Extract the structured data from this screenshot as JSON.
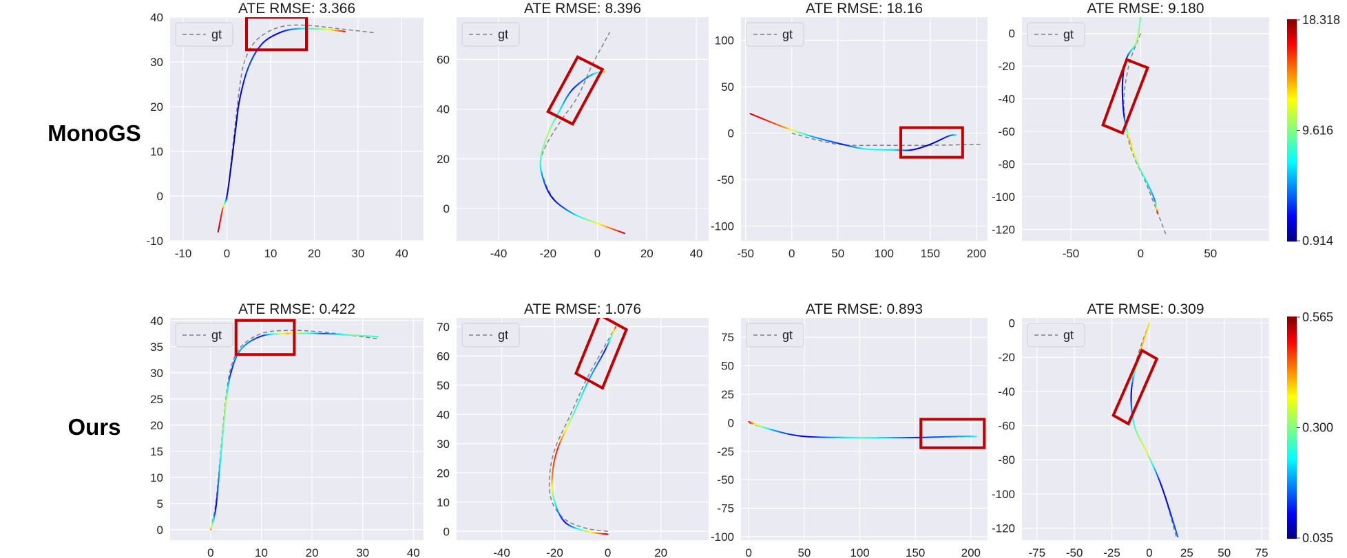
{
  "figure": {
    "row_labels": [
      "MonoGS",
      "Ours"
    ],
    "legend_label": "gt",
    "gt_color": "#7f7f7f",
    "highlight_color": "#c00000",
    "panel_bg": "#eaeaf2",
    "grid_color": "#ffffff",
    "colormap": "jet"
  },
  "chart_data": [
    {
      "type": "line",
      "row": 0,
      "col": 0,
      "title": "ATE RMSE: 3.366",
      "xlim": [
        -13,
        45
      ],
      "ylim": [
        -10,
        40
      ],
      "xticks": [
        -10,
        0,
        10,
        20,
        30,
        40
      ],
      "yticks": [
        -10,
        0,
        10,
        20,
        30,
        40
      ],
      "gt": [
        [
          0,
          -1
        ],
        [
          1,
          8
        ],
        [
          2,
          17
        ],
        [
          3,
          25
        ],
        [
          4,
          30
        ],
        [
          6,
          34
        ],
        [
          9,
          36.5
        ],
        [
          13,
          38
        ],
        [
          18,
          38.2
        ],
        [
          25,
          37.5
        ],
        [
          34,
          36.5
        ]
      ],
      "est": [
        [
          -2,
          -8
        ],
        [
          -1,
          -3
        ],
        [
          0,
          0
        ],
        [
          1,
          7
        ],
        [
          2,
          15
        ],
        [
          3,
          22
        ],
        [
          5,
          29
        ],
        [
          8,
          34
        ],
        [
          12,
          36.5
        ],
        [
          16,
          37.4
        ],
        [
          22,
          37.3
        ],
        [
          27,
          36.8
        ]
      ],
      "err": [
        0.95,
        0.8,
        0.1,
        0.05,
        0.05,
        0.1,
        0.2,
        0.15,
        0.1,
        0.3,
        0.55,
        0.9
      ],
      "highlight": [
        [
          4.5,
          32.7
        ],
        [
          18.2,
          32.7
        ],
        [
          18.2,
          40
        ],
        [
          4.5,
          40
        ]
      ],
      "colorbar": null
    },
    {
      "type": "line",
      "row": 0,
      "col": 1,
      "title": "ATE RMSE: 8.396",
      "xlim": [
        -57,
        45
      ],
      "ylim": [
        -13,
        77
      ],
      "xticks": [
        -40,
        -20,
        0,
        20,
        40
      ],
      "yticks": [
        0,
        20,
        40,
        60
      ],
      "gt": [
        [
          -13,
          0
        ],
        [
          -17,
          3
        ],
        [
          -21,
          10
        ],
        [
          -23,
          18
        ],
        [
          -21,
          25
        ],
        [
          -15,
          35
        ],
        [
          -8,
          45
        ],
        [
          -2,
          58
        ],
        [
          5,
          71
        ]
      ],
      "est": [
        [
          11,
          -10
        ],
        [
          0,
          -6
        ],
        [
          -10,
          -2
        ],
        [
          -18,
          4
        ],
        [
          -22,
          12
        ],
        [
          -23,
          20
        ],
        [
          -20,
          30
        ],
        [
          -15,
          40
        ],
        [
          -10,
          48
        ],
        [
          -2,
          54
        ],
        [
          3,
          55
        ]
      ],
      "err": [
        0.95,
        0.6,
        0.3,
        0.08,
        0.25,
        0.45,
        0.55,
        0.35,
        0.15,
        0.3,
        0.75
      ],
      "highlight": [
        [
          -20,
          39
        ],
        [
          -10,
          34
        ],
        [
          2,
          56
        ],
        [
          -8,
          61
        ]
      ],
      "colorbar": null
    },
    {
      "type": "line",
      "row": 0,
      "col": 2,
      "title": "ATE RMSE: 18.16",
      "xlim": [
        -55,
        212
      ],
      "ylim": [
        -116,
        125
      ],
      "xticks": [
        -50,
        0,
        50,
        100,
        150,
        200
      ],
      "yticks": [
        -100,
        -50,
        0,
        50,
        100
      ],
      "gt": [
        [
          0,
          0
        ],
        [
          50,
          -12
        ],
        [
          100,
          -13
        ],
        [
          150,
          -13
        ],
        [
          205,
          -12
        ]
      ],
      "est": [
        [
          -45,
          21
        ],
        [
          -10,
          7
        ],
        [
          20,
          -3
        ],
        [
          55,
          -12
        ],
        [
          80,
          -17
        ],
        [
          110,
          -18
        ],
        [
          130,
          -18
        ],
        [
          150,
          -12
        ],
        [
          170,
          -3
        ],
        [
          178,
          -2
        ]
      ],
      "err": [
        0.95,
        0.75,
        0.3,
        0.15,
        0.4,
        0.35,
        0.1,
        0.05,
        0.2,
        0.4
      ],
      "highlight": [
        [
          118,
          -26
        ],
        [
          185,
          -26
        ],
        [
          185,
          6
        ],
        [
          118,
          6
        ]
      ],
      "colorbar": {
        "max": "18.318",
        "mid": "9.616",
        "min": "0.914"
      }
    },
    {
      "type": "line",
      "row": 0,
      "col": 3,
      "title": "ATE RMSE: 9.180",
      "xlim": [
        -85,
        92
      ],
      "ylim": [
        -127,
        10
      ],
      "xticks": [
        -50,
        0,
        50
      ],
      "yticks": [
        -120,
        -100,
        -80,
        -60,
        -40,
        -20,
        0
      ],
      "gt": [
        [
          0,
          0
        ],
        [
          -8,
          -18
        ],
        [
          -12,
          -40
        ],
        [
          -10,
          -60
        ],
        [
          -5,
          -75
        ],
        [
          3,
          -90
        ],
        [
          10,
          -105
        ],
        [
          18,
          -123
        ]
      ],
      "est": [
        [
          0,
          10
        ],
        [
          -3,
          -5
        ],
        [
          -10,
          -15
        ],
        [
          -13,
          -30
        ],
        [
          -12,
          -50
        ],
        [
          -8,
          -65
        ],
        [
          -2,
          -80
        ],
        [
          5,
          -92
        ],
        [
          10,
          -102
        ],
        [
          12,
          -110
        ]
      ],
      "err": [
        0.45,
        0.55,
        0.15,
        0.05,
        0.15,
        0.7,
        0.5,
        0.35,
        0.25,
        0.95
      ],
      "highlight": [
        [
          -27,
          -56
        ],
        [
          -13,
          -61
        ],
        [
          5,
          -21
        ],
        [
          -10,
          -16
        ]
      ],
      "colorbar": null
    },
    {
      "type": "line",
      "row": 1,
      "col": 0,
      "title": "ATE RMSE: 0.422",
      "xlim": [
        -8,
        42
      ],
      "ylim": [
        -2,
        40.5
      ],
      "xticks": [
        0,
        10,
        20,
        30,
        40
      ],
      "yticks": [
        0,
        5,
        10,
        15,
        20,
        25,
        30,
        35,
        40
      ],
      "gt": [
        [
          0,
          0
        ],
        [
          1,
          5
        ],
        [
          2,
          15
        ],
        [
          3,
          25
        ],
        [
          4,
          31
        ],
        [
          6,
          35
        ],
        [
          10,
          37.5
        ],
        [
          15,
          38.1
        ],
        [
          22,
          37.8
        ],
        [
          33,
          36.5
        ]
      ],
      "est": [
        [
          0,
          0
        ],
        [
          1,
          4
        ],
        [
          2,
          14
        ],
        [
          3,
          24
        ],
        [
          4,
          30
        ],
        [
          6,
          34.5
        ],
        [
          10,
          37
        ],
        [
          15,
          37.5
        ],
        [
          22,
          37.5
        ],
        [
          28,
          37.2
        ],
        [
          33,
          36.9
        ]
      ],
      "err": [
        0.75,
        0.1,
        0.4,
        0.55,
        0.15,
        0.3,
        0.15,
        0.7,
        0.2,
        0.5,
        0.4
      ],
      "highlight": [
        [
          5,
          33.5
        ],
        [
          16.5,
          33.5
        ],
        [
          16.5,
          40
        ],
        [
          5,
          40
        ]
      ],
      "colorbar": null
    },
    {
      "type": "line",
      "row": 1,
      "col": 1,
      "title": "ATE RMSE: 1.076",
      "xlim": [
        -57,
        38
      ],
      "ylim": [
        -3,
        73
      ],
      "xticks": [
        -40,
        -20,
        0,
        20
      ],
      "yticks": [
        0,
        10,
        20,
        30,
        40,
        50,
        60,
        70
      ],
      "gt": [
        [
          0,
          0
        ],
        [
          -8,
          1
        ],
        [
          -16,
          4
        ],
        [
          -21,
          10
        ],
        [
          -22,
          18
        ],
        [
          -20,
          28
        ],
        [
          -14,
          40
        ],
        [
          -8,
          52
        ],
        [
          -2,
          62
        ],
        [
          3,
          70
        ]
      ],
      "est": [
        [
          0,
          -1
        ],
        [
          -8,
          0
        ],
        [
          -16,
          3
        ],
        [
          -20,
          10
        ],
        [
          -21,
          18
        ],
        [
          -19,
          28
        ],
        [
          -13,
          40
        ],
        [
          -7,
          52
        ],
        [
          -1,
          62
        ],
        [
          3,
          70
        ]
      ],
      "err": [
        0.95,
        0.55,
        0.1,
        0.4,
        0.75,
        0.85,
        0.45,
        0.3,
        0.15,
        0.85
      ],
      "highlight": [
        [
          -12,
          54
        ],
        [
          -2,
          49
        ],
        [
          7,
          69
        ],
        [
          -3,
          74
        ]
      ],
      "colorbar": null
    },
    {
      "type": "line",
      "row": 1,
      "col": 2,
      "title": "ATE RMSE: 0.893",
      "xlim": [
        -7,
        215
      ],
      "ylim": [
        -103,
        92
      ],
      "xticks": [
        0,
        50,
        100,
        150,
        200
      ],
      "yticks": [
        -100,
        -75,
        -50,
        -25,
        0,
        25,
        50,
        75
      ],
      "gt": [
        [
          0,
          0
        ],
        [
          20,
          -6
        ],
        [
          50,
          -12
        ],
        [
          100,
          -13
        ],
        [
          150,
          -13
        ],
        [
          205,
          -12
        ]
      ],
      "est": [
        [
          0,
          1
        ],
        [
          20,
          -6
        ],
        [
          50,
          -12
        ],
        [
          100,
          -13
        ],
        [
          150,
          -13
        ],
        [
          190,
          -12
        ],
        [
          205,
          -12
        ]
      ],
      "err": [
        0.85,
        0.3,
        0.1,
        0.45,
        0.15,
        0.3,
        0.4
      ],
      "highlight": [
        [
          155,
          -22
        ],
        [
          212,
          -22
        ],
        [
          212,
          3
        ],
        [
          155,
          3
        ]
      ],
      "colorbar": {
        "max": "0.565",
        "mid": "0.300",
        "min": "0.035"
      }
    },
    {
      "type": "line",
      "row": 1,
      "col": 3,
      "title": "ATE RMSE: 0.309",
      "xlim": [
        -85,
        80
      ],
      "ylim": [
        -127,
        3
      ],
      "xticks": [
        -75,
        -50,
        -25,
        0,
        25,
        50,
        75
      ],
      "yticks": [
        -120,
        -100,
        -80,
        -60,
        -40,
        -20,
        0
      ],
      "gt": [
        [
          0,
          0
        ],
        [
          -8,
          -20
        ],
        [
          -12,
          -40
        ],
        [
          -10,
          -60
        ],
        [
          -2,
          -75
        ],
        [
          8,
          -95
        ],
        [
          18,
          -125
        ]
      ],
      "est": [
        [
          0,
          0
        ],
        [
          -7,
          -20
        ],
        [
          -12,
          -40
        ],
        [
          -10,
          -60
        ],
        [
          -2,
          -75
        ],
        [
          8,
          -95
        ],
        [
          19,
          -125
        ]
      ],
      "err": [
        0.65,
        0.7,
        0.05,
        0.45,
        0.6,
        0.08,
        0.25
      ],
      "highlight": [
        [
          -24,
          -54
        ],
        [
          -14,
          -59
        ],
        [
          5,
          -21
        ],
        [
          -5,
          -16
        ]
      ],
      "colorbar": null
    }
  ]
}
